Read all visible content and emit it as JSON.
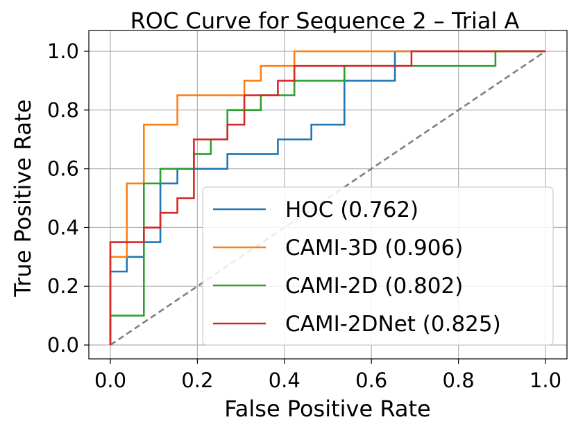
{
  "chart_data": {
    "type": "line",
    "title": "ROC Curve for Sequence 2 – Trial A",
    "xlabel": "False Positive Rate",
    "ylabel": "True Positive Rate",
    "xlim": [
      0.0,
      1.0
    ],
    "ylim": [
      0.0,
      1.0
    ],
    "xticks": [
      "0.0",
      "0.2",
      "0.4",
      "0.6",
      "0.8",
      "1.0"
    ],
    "yticks": [
      "0.0",
      "0.2",
      "0.4",
      "0.6",
      "0.8",
      "1.0"
    ],
    "grid": true,
    "legend_position": "lower-right",
    "series": [
      {
        "name": "HOC (0.762)",
        "color": "#1f77b4",
        "x": [
          0.0,
          0.0,
          0.038,
          0.038,
          0.077,
          0.077,
          0.115,
          0.115,
          0.154,
          0.154,
          0.269,
          0.269,
          0.385,
          0.385,
          0.462,
          0.462,
          0.538,
          0.538,
          0.654,
          0.654,
          1.0
        ],
        "y": [
          0.0,
          0.25,
          0.25,
          0.3,
          0.3,
          0.35,
          0.35,
          0.55,
          0.55,
          0.6,
          0.6,
          0.65,
          0.65,
          0.7,
          0.7,
          0.75,
          0.75,
          0.9,
          0.9,
          1.0,
          1.0
        ]
      },
      {
        "name": "CAMI-3D (0.906)",
        "color": "#ff7f0e",
        "x": [
          0.0,
          0.0,
          0.038,
          0.038,
          0.077,
          0.077,
          0.154,
          0.154,
          0.308,
          0.308,
          0.346,
          0.346,
          0.423,
          0.423,
          1.0
        ],
        "y": [
          0.0,
          0.3,
          0.3,
          0.55,
          0.55,
          0.75,
          0.75,
          0.85,
          0.85,
          0.9,
          0.9,
          0.95,
          0.95,
          1.0,
          1.0
        ]
      },
      {
        "name": "CAMI-2D (0.802)",
        "color": "#2ca02c",
        "x": [
          0.0,
          0.0,
          0.077,
          0.077,
          0.115,
          0.115,
          0.192,
          0.192,
          0.231,
          0.231,
          0.269,
          0.269,
          0.346,
          0.346,
          0.423,
          0.423,
          0.538,
          0.538,
          0.885,
          0.885,
          1.0
        ],
        "y": [
          0.0,
          0.1,
          0.1,
          0.55,
          0.55,
          0.6,
          0.6,
          0.65,
          0.65,
          0.7,
          0.7,
          0.8,
          0.8,
          0.85,
          0.85,
          0.9,
          0.9,
          0.95,
          0.95,
          1.0,
          1.0
        ]
      },
      {
        "name": "CAMI-2DNet (0.825)",
        "color": "#d62728",
        "x": [
          0.0,
          0.0,
          0.077,
          0.077,
          0.115,
          0.115,
          0.154,
          0.154,
          0.192,
          0.192,
          0.269,
          0.269,
          0.308,
          0.308,
          0.385,
          0.385,
          0.423,
          0.423,
          0.692,
          0.692,
          1.0
        ],
        "y": [
          0.0,
          0.35,
          0.35,
          0.4,
          0.4,
          0.45,
          0.45,
          0.5,
          0.5,
          0.7,
          0.7,
          0.75,
          0.75,
          0.85,
          0.85,
          0.9,
          0.9,
          0.95,
          0.95,
          1.0,
          1.0
        ]
      }
    ],
    "reference_line": {
      "x": [
        0.0,
        1.0
      ],
      "y": [
        0.0,
        1.0
      ],
      "color": "#808080",
      "style": "dashed"
    }
  }
}
